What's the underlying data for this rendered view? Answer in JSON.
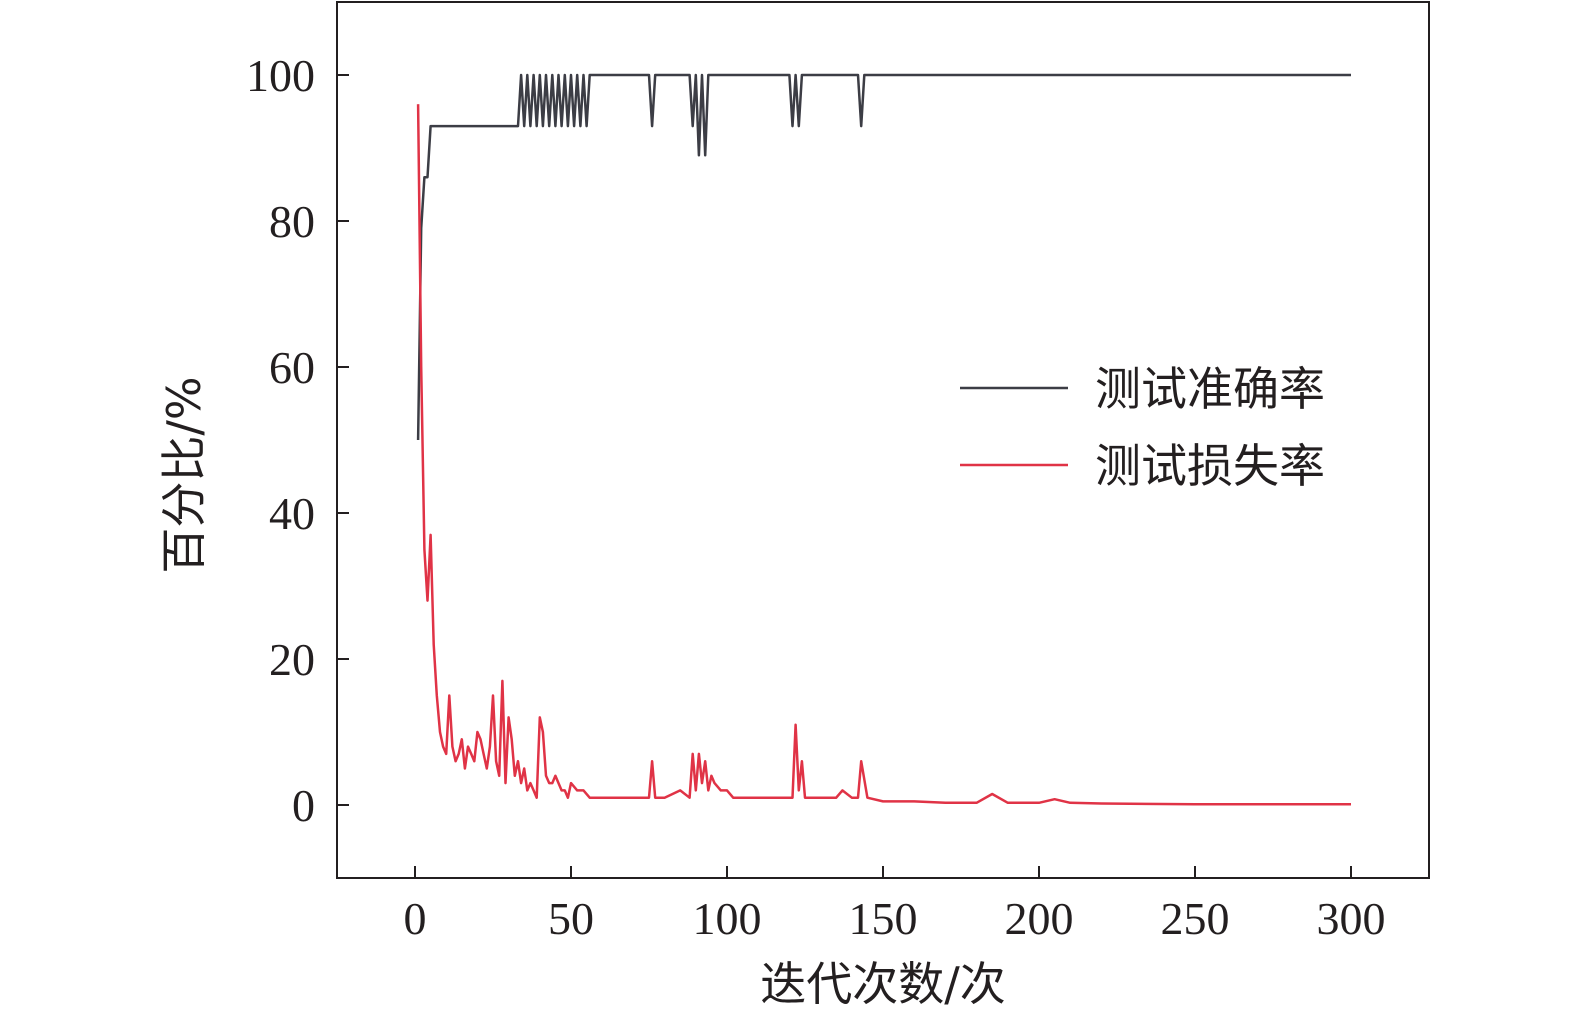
{
  "chart_data": {
    "type": "line",
    "title": "",
    "xlabel": "迭代次数/次",
    "ylabel": "百分比/%",
    "xlim": [
      -25,
      325
    ],
    "ylim": [
      -10,
      110
    ],
    "xticks": [
      0,
      50,
      100,
      150,
      200,
      250,
      300
    ],
    "yticks": [
      0,
      20,
      40,
      60,
      80,
      100
    ],
    "grid": false,
    "legend_position": "right-center",
    "series": [
      {
        "name": "测试准确率",
        "color": "#3c3d45",
        "x": [
          1,
          2,
          3,
          4,
          5,
          6,
          8,
          10,
          15,
          20,
          25,
          30,
          33,
          34,
          35,
          36,
          37,
          38,
          39,
          40,
          41,
          42,
          43,
          44,
          45,
          46,
          47,
          48,
          49,
          50,
          51,
          52,
          53,
          54,
          55,
          56,
          60,
          65,
          70,
          75,
          76,
          77,
          78,
          80,
          85,
          88,
          89,
          90,
          91,
          92,
          93,
          94,
          95,
          100,
          110,
          120,
          121,
          122,
          123,
          124,
          125,
          130,
          135,
          140,
          142,
          143,
          144,
          150,
          200,
          250,
          300
        ],
        "y": [
          50,
          79,
          86,
          86,
          93,
          93,
          93,
          93,
          93,
          93,
          93,
          93,
          93,
          100,
          93,
          100,
          93,
          100,
          93,
          100,
          93,
          100,
          93,
          100,
          93,
          100,
          93,
          100,
          93,
          100,
          93,
          100,
          93,
          100,
          93,
          100,
          100,
          100,
          100,
          100,
          93,
          100,
          100,
          100,
          100,
          100,
          93,
          100,
          89,
          100,
          89,
          100,
          100,
          100,
          100,
          100,
          93,
          100,
          93,
          100,
          100,
          100,
          100,
          100,
          100,
          93,
          100,
          100,
          100,
          100,
          100
        ]
      },
      {
        "name": "测试损失率",
        "color": "#e03346",
        "x": [
          1,
          2,
          3,
          4,
          5,
          6,
          7,
          8,
          9,
          10,
          11,
          12,
          13,
          14,
          15,
          16,
          17,
          18,
          19,
          20,
          21,
          22,
          23,
          24,
          25,
          26,
          27,
          28,
          29,
          30,
          31,
          32,
          33,
          34,
          35,
          36,
          37,
          38,
          39,
          40,
          41,
          42,
          43,
          44,
          45,
          46,
          47,
          48,
          49,
          50,
          52,
          54,
          56,
          58,
          60,
          65,
          70,
          75,
          76,
          77,
          78,
          80,
          85,
          88,
          89,
          90,
          91,
          92,
          93,
          94,
          95,
          96,
          98,
          100,
          102,
          105,
          110,
          115,
          120,
          121,
          122,
          123,
          124,
          125,
          130,
          135,
          137,
          140,
          142,
          143,
          145,
          150,
          160,
          170,
          180,
          185,
          190,
          200,
          205,
          210,
          220,
          250,
          275,
          300
        ],
        "y": [
          96,
          60,
          35,
          28,
          37,
          22,
          15,
          10,
          8,
          7,
          15,
          8,
          6,
          7,
          9,
          5,
          8,
          7,
          6,
          10,
          9,
          7,
          5,
          8,
          15,
          6,
          4,
          17,
          3,
          12,
          9,
          4,
          6,
          3,
          5,
          2,
          3,
          2,
          1,
          12,
          10,
          4,
          3,
          3,
          4,
          3,
          2,
          2,
          1,
          3,
          2,
          2,
          1,
          1,
          1,
          1,
          1,
          1,
          6,
          1,
          1,
          1,
          2,
          1,
          7,
          2,
          7,
          3,
          6,
          2,
          4,
          3,
          2,
          2,
          1,
          1,
          1,
          1,
          1,
          1,
          11,
          2,
          6,
          1,
          1,
          1,
          2,
          1,
          1,
          6,
          1,
          0.5,
          0.5,
          0.3,
          0.3,
          1.5,
          0.3,
          0.3,
          0.8,
          0.3,
          0.2,
          0.1,
          0.1,
          0.1
        ]
      }
    ]
  }
}
